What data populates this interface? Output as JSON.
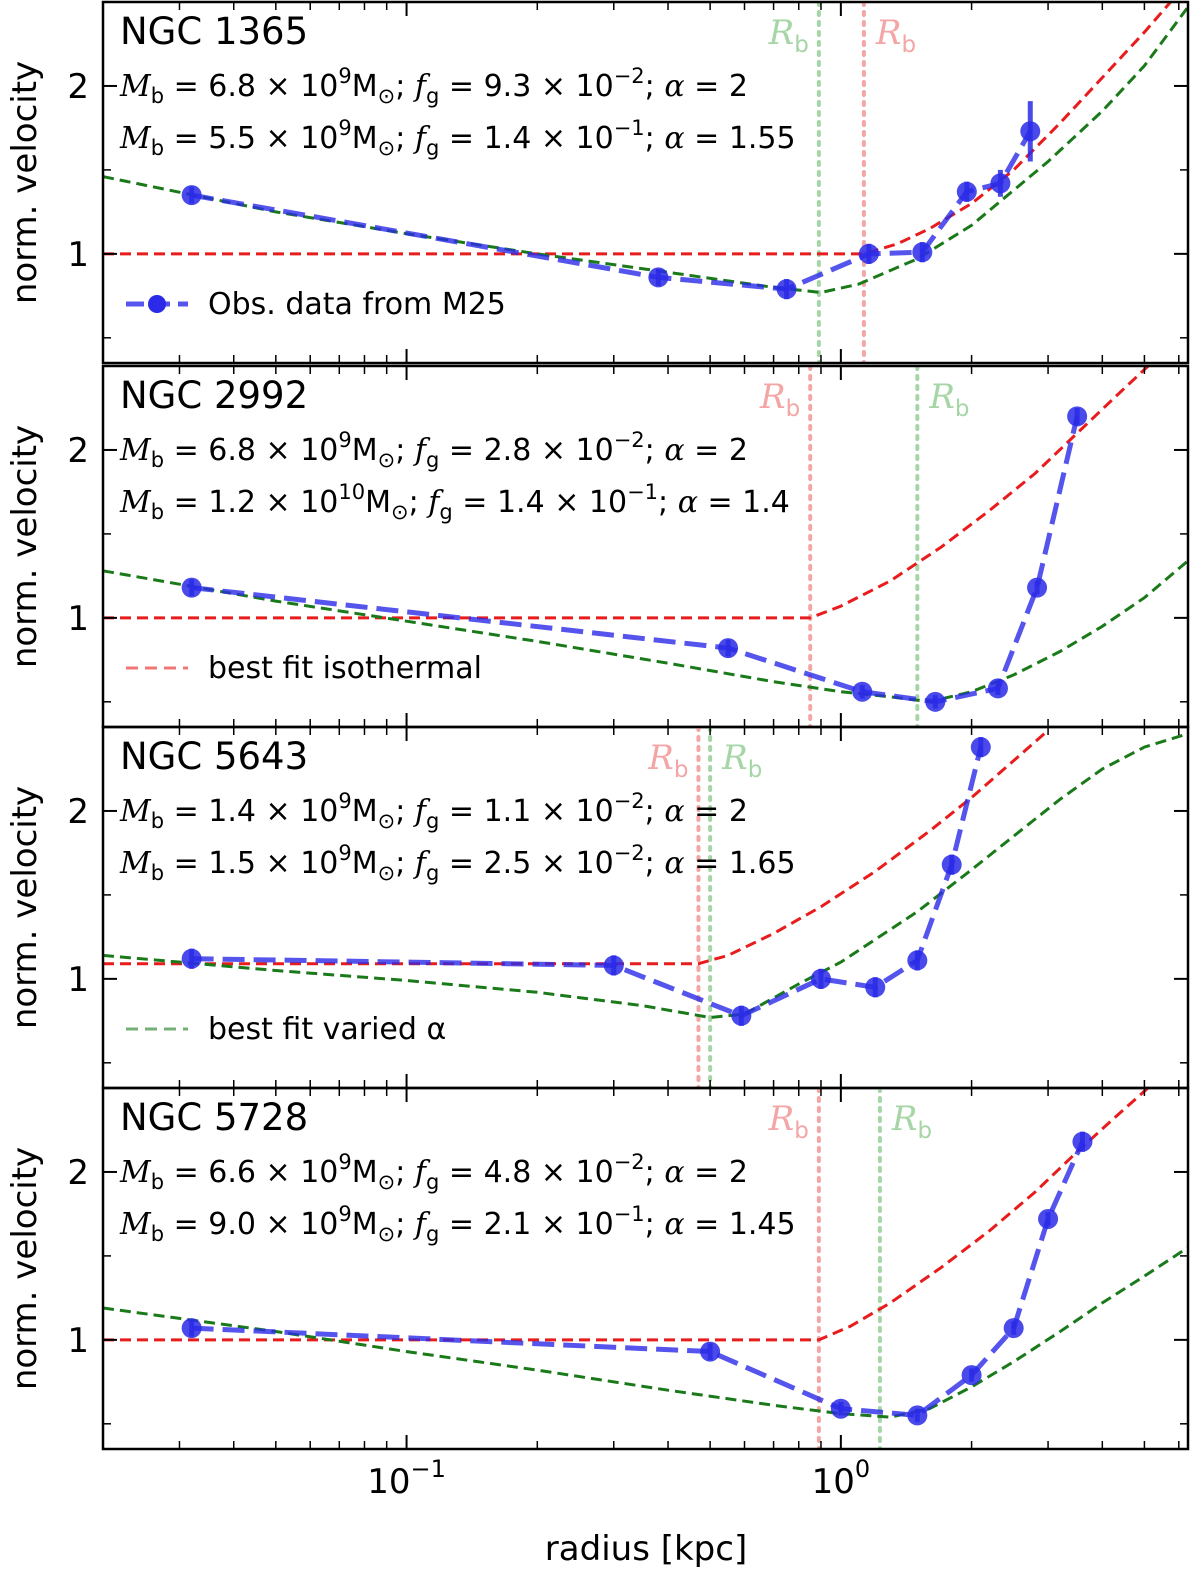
{
  "chart_data": {
    "type": "line",
    "xscale": "log",
    "xlim": [
      0.02,
      6.3
    ],
    "xlabel": "radius [kpc]",
    "ylabel": "norm. velocity",
    "x_ticklabels": [
      {
        "value": 0.1,
        "base": "10",
        "exp": "−1"
      },
      {
        "value": 1.0,
        "base": "10",
        "exp": "0"
      }
    ],
    "y_ticks": [
      1,
      2
    ],
    "colors": {
      "obs": "#2a2ae8",
      "iso": "#e81c1c",
      "alpha": "#1a7a1a",
      "rb_iso": "#f4a6a6",
      "rb_alpha": "#a6d6a6"
    },
    "legend": [
      {
        "panel": 0,
        "label": "Obs. data from M25",
        "kind": "obs"
      },
      {
        "panel": 1,
        "label": "best fit isothermal",
        "kind": "iso"
      },
      {
        "panel": 2,
        "label": "best fit varied α",
        "kind": "alpha"
      }
    ],
    "panels": [
      {
        "name": "NGC 1365",
        "ylim": [
          0.35,
          2.5
        ],
        "fit_iso": {
          "Mb_mant": "6.8",
          "Mb_exp": "9",
          "fg_mant": "9.3",
          "fg_exp": "−2",
          "alpha": "2"
        },
        "fit_alpha": {
          "Mb_mant": "5.5",
          "Mb_exp": "9",
          "fg_mant": "1.4",
          "fg_exp": "−1",
          "alpha": "1.55"
        },
        "rb_label": "R",
        "rb_sub": "b",
        "rb_iso": 1.13,
        "rb_alpha": 0.89,
        "obs": [
          {
            "x": 0.032,
            "y": 1.35,
            "err": 0.05
          },
          {
            "x": 0.38,
            "y": 0.86,
            "err": 0.05
          },
          {
            "x": 0.75,
            "y": 0.79,
            "err": 0.06
          },
          {
            "x": 1.16,
            "y": 1.0,
            "err": 0.06
          },
          {
            "x": 1.54,
            "y": 1.01,
            "err": 0.06
          },
          {
            "x": 1.95,
            "y": 1.37,
            "err": 0.06
          },
          {
            "x": 2.33,
            "y": 1.42,
            "err": 0.08
          },
          {
            "x": 2.73,
            "y": 1.73,
            "err": 0.18
          }
        ],
        "iso_curve": [
          [
            0.02,
            1.0
          ],
          [
            1.13,
            1.0
          ],
          [
            1.35,
            1.06
          ],
          [
            1.6,
            1.15
          ],
          [
            2.0,
            1.3
          ],
          [
            2.5,
            1.5
          ],
          [
            3.2,
            1.78
          ],
          [
            4.0,
            2.05
          ],
          [
            5.0,
            2.32
          ],
          [
            6.3,
            2.62
          ]
        ],
        "alpha_curve": [
          [
            0.02,
            1.46
          ],
          [
            0.05,
            1.25
          ],
          [
            0.1,
            1.12
          ],
          [
            0.2,
            1.0
          ],
          [
            0.4,
            0.89
          ],
          [
            0.7,
            0.8
          ],
          [
            0.9,
            0.77
          ],
          [
            1.1,
            0.82
          ],
          [
            1.5,
            0.97
          ],
          [
            2.0,
            1.17
          ],
          [
            3.0,
            1.55
          ],
          [
            4.0,
            1.85
          ],
          [
            5.0,
            2.12
          ],
          [
            6.3,
            2.47
          ]
        ]
      },
      {
        "name": "NGC 2992",
        "ylim": [
          0.35,
          2.5
        ],
        "fit_iso": {
          "Mb_mant": "6.8",
          "Mb_exp": "9",
          "fg_mant": "2.8",
          "fg_exp": "−2",
          "alpha": "2"
        },
        "fit_alpha": {
          "Mb_mant": "1.2",
          "Mb_exp": "10",
          "fg_mant": "1.4",
          "fg_exp": "−1",
          "alpha": "1.4"
        },
        "rb_label": "R",
        "rb_sub": "b",
        "rb_iso": 0.85,
        "rb_alpha": 1.5,
        "obs": [
          {
            "x": 0.032,
            "y": 1.18,
            "err": 0.05
          },
          {
            "x": 0.55,
            "y": 0.82,
            "err": 0.05
          },
          {
            "x": 1.12,
            "y": 0.56,
            "err": 0.04
          },
          {
            "x": 1.65,
            "y": 0.5,
            "err": 0.04
          },
          {
            "x": 2.3,
            "y": 0.58,
            "err": 0.04
          },
          {
            "x": 2.83,
            "y": 1.18,
            "err": 0.04
          },
          {
            "x": 3.5,
            "y": 2.2,
            "err": 0.05
          }
        ],
        "iso_curve": [
          [
            0.02,
            1.0
          ],
          [
            0.85,
            1.0
          ],
          [
            1.0,
            1.07
          ],
          [
            1.3,
            1.22
          ],
          [
            1.7,
            1.42
          ],
          [
            2.2,
            1.64
          ],
          [
            2.8,
            1.86
          ],
          [
            3.5,
            2.1
          ],
          [
            4.3,
            2.32
          ],
          [
            5.2,
            2.52
          ],
          [
            6.3,
            2.72
          ]
        ],
        "alpha_curve": [
          [
            0.02,
            1.28
          ],
          [
            0.05,
            1.1
          ],
          [
            0.1,
            0.98
          ],
          [
            0.2,
            0.86
          ],
          [
            0.4,
            0.73
          ],
          [
            0.7,
            0.62
          ],
          [
            1.0,
            0.56
          ],
          [
            1.3,
            0.53
          ],
          [
            1.6,
            0.5
          ],
          [
            2.0,
            0.56
          ],
          [
            2.5,
            0.66
          ],
          [
            3.2,
            0.8
          ],
          [
            4.0,
            0.95
          ],
          [
            5.0,
            1.12
          ],
          [
            6.3,
            1.34
          ]
        ]
      },
      {
        "name": "NGC 5643",
        "ylim": [
          0.35,
          2.5
        ],
        "fit_iso": {
          "Mb_mant": "1.4",
          "Mb_exp": "9",
          "fg_mant": "1.1",
          "fg_exp": "−2",
          "alpha": "2"
        },
        "fit_alpha": {
          "Mb_mant": "1.5",
          "Mb_exp": "9",
          "fg_mant": "2.5",
          "fg_exp": "−2",
          "alpha": "1.65"
        },
        "rb_label": "R",
        "rb_sub": "b",
        "rb_iso": 0.47,
        "rb_alpha": 0.5,
        "obs": [
          {
            "x": 0.032,
            "y": 1.12,
            "err": 0.06
          },
          {
            "x": 0.3,
            "y": 1.08,
            "err": 0.06
          },
          {
            "x": 0.59,
            "y": 0.78,
            "err": 0.06
          },
          {
            "x": 0.9,
            "y": 1.0,
            "err": 0.06
          },
          {
            "x": 1.2,
            "y": 0.95,
            "err": 0.06
          },
          {
            "x": 1.5,
            "y": 1.11,
            "err": 0.06
          },
          {
            "x": 1.8,
            "y": 1.68,
            "err": 0.06
          },
          {
            "x": 2.1,
            "y": 2.38,
            "err": 0.06
          }
        ],
        "iso_curve": [
          [
            0.02,
            1.09
          ],
          [
            0.47,
            1.09
          ],
          [
            0.55,
            1.14
          ],
          [
            0.7,
            1.27
          ],
          [
            0.9,
            1.43
          ],
          [
            1.2,
            1.64
          ],
          [
            1.6,
            1.88
          ],
          [
            2.0,
            2.08
          ],
          [
            2.5,
            2.3
          ],
          [
            3.0,
            2.48
          ]
        ],
        "alpha_curve": [
          [
            0.02,
            1.14
          ],
          [
            0.05,
            1.05
          ],
          [
            0.1,
            0.99
          ],
          [
            0.2,
            0.92
          ],
          [
            0.35,
            0.84
          ],
          [
            0.5,
            0.77
          ],
          [
            0.6,
            0.79
          ],
          [
            0.8,
            0.97
          ],
          [
            1.0,
            1.1
          ],
          [
            1.5,
            1.4
          ],
          [
            2.0,
            1.65
          ],
          [
            2.5,
            1.85
          ],
          [
            3.2,
            2.07
          ],
          [
            4.0,
            2.25
          ],
          [
            5.0,
            2.38
          ],
          [
            6.3,
            2.46
          ]
        ]
      },
      {
        "name": "NGC 5728",
        "ylim": [
          0.35,
          2.5
        ],
        "fit_iso": {
          "Mb_mant": "6.6",
          "Mb_exp": "9",
          "fg_mant": "4.8",
          "fg_exp": "−2",
          "alpha": "2"
        },
        "fit_alpha": {
          "Mb_mant": "9.0",
          "Mb_exp": "9",
          "fg_mant": "2.1",
          "fg_exp": "−1",
          "alpha": "1.45"
        },
        "rb_label": "R",
        "rb_sub": "b",
        "rb_iso": 0.89,
        "rb_alpha": 1.23,
        "obs": [
          {
            "x": 0.032,
            "y": 1.07,
            "err": 0.05
          },
          {
            "x": 0.5,
            "y": 0.93,
            "err": 0.05
          },
          {
            "x": 1.0,
            "y": 0.59,
            "err": 0.04
          },
          {
            "x": 1.5,
            "y": 0.55,
            "err": 0.04
          },
          {
            "x": 2.0,
            "y": 0.79,
            "err": 0.04
          },
          {
            "x": 2.5,
            "y": 1.07,
            "err": 0.04
          },
          {
            "x": 3.0,
            "y": 1.72,
            "err": 0.04
          },
          {
            "x": 3.6,
            "y": 2.18,
            "err": 0.06
          }
        ],
        "iso_curve": [
          [
            0.02,
            1.0
          ],
          [
            0.89,
            1.0
          ],
          [
            1.05,
            1.08
          ],
          [
            1.3,
            1.22
          ],
          [
            1.7,
            1.43
          ],
          [
            2.2,
            1.65
          ],
          [
            2.8,
            1.88
          ],
          [
            3.5,
            2.12
          ],
          [
            4.3,
            2.33
          ],
          [
            5.2,
            2.52
          ],
          [
            6.3,
            2.72
          ]
        ],
        "alpha_curve": [
          [
            0.02,
            1.19
          ],
          [
            0.05,
            1.05
          ],
          [
            0.1,
            0.93
          ],
          [
            0.2,
            0.82
          ],
          [
            0.4,
            0.7
          ],
          [
            0.7,
            0.61
          ],
          [
            1.0,
            0.56
          ],
          [
            1.3,
            0.54
          ],
          [
            1.6,
            0.59
          ],
          [
            2.0,
            0.72
          ],
          [
            2.5,
            0.87
          ],
          [
            3.2,
            1.05
          ],
          [
            4.0,
            1.22
          ],
          [
            5.0,
            1.38
          ],
          [
            6.3,
            1.55
          ]
        ]
      }
    ]
  }
}
